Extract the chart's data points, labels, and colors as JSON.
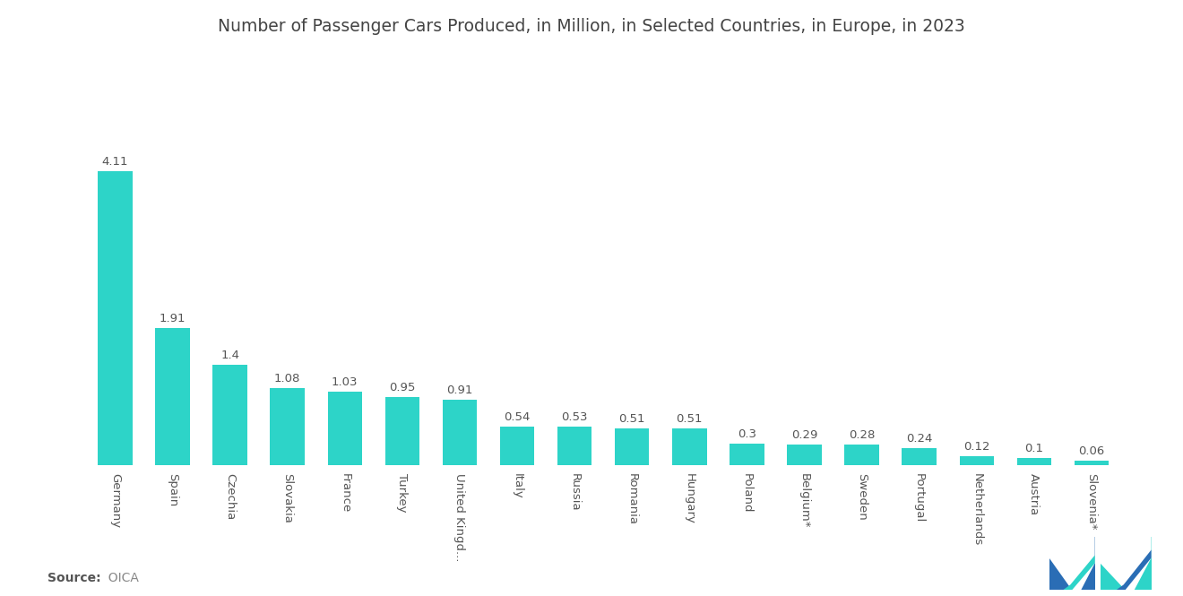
{
  "title": "Number of Passenger Cars Produced, in Million, in Selected Countries, in Europe, in 2023",
  "categories": [
    "Germany",
    "Spain",
    "Czechia",
    "Slovakia",
    "France",
    "Turkey",
    "United Kingd...",
    "Italy",
    "Russia",
    "Romania",
    "Hungary",
    "Poland",
    "Belgium*",
    "Sweden",
    "Portugal",
    "Netherlands",
    "Austria",
    "Slovenia*"
  ],
  "values": [
    4.11,
    1.91,
    1.4,
    1.08,
    1.03,
    0.95,
    0.91,
    0.54,
    0.53,
    0.51,
    0.51,
    0.3,
    0.29,
    0.28,
    0.24,
    0.12,
    0.1,
    0.06
  ],
  "bar_color": "#2DD4C8",
  "background_color": "#ffffff",
  "source_bold": "Source:",
  "source_normal": "  OICA",
  "title_fontsize": 13.5,
  "label_fontsize": 9.5,
  "value_fontsize": 9.5,
  "source_fontsize": 10,
  "ylim": [
    0,
    5.5
  ],
  "logo_blue": "#2A6DB5",
  "logo_teal": "#2DD4C8"
}
